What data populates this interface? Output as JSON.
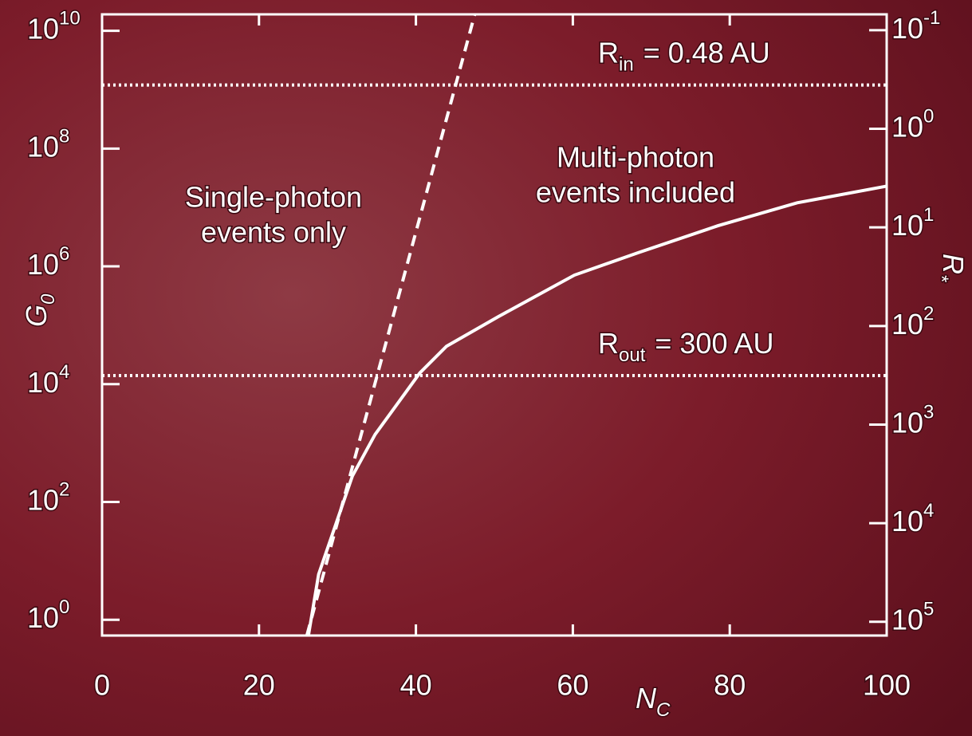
{
  "chart_data": {
    "type": "line",
    "xlabel": "N",
    "xlabel_sub": "C",
    "ylabel": "G",
    "ylabel_sub": "0",
    "y2label": "R",
    "y2label_sub": "*",
    "xlim": [
      0,
      100
    ],
    "xticks": [
      0,
      20,
      40,
      60,
      80,
      100
    ],
    "yscale": "log",
    "ylim": [
      0.54,
      19000000000
    ],
    "yticks": [
      {
        "value": 1,
        "label": "10",
        "exp": "0"
      },
      {
        "value": 100,
        "label": "10",
        "exp": "2"
      },
      {
        "value": 10000,
        "label": "10",
        "exp": "4"
      },
      {
        "value": 1000000,
        "label": "10",
        "exp": "6"
      },
      {
        "value": 100000000,
        "label": "10",
        "exp": "8"
      },
      {
        "value": 10000000000,
        "label": "10",
        "exp": "10"
      }
    ],
    "y2scale": "log",
    "y2lim": [
      138000,
      0.069
    ],
    "y2ticks": [
      {
        "value": 0.1,
        "label": "10",
        "exp": "-1"
      },
      {
        "value": 1,
        "label": "10",
        "exp": "0"
      },
      {
        "value": 10,
        "label": "10",
        "exp": "1"
      },
      {
        "value": 100,
        "label": "10",
        "exp": "2"
      },
      {
        "value": 1000,
        "label": "10",
        "exp": "3"
      },
      {
        "value": 10000,
        "label": "10",
        "exp": "4"
      },
      {
        "value": 100000,
        "label": "10",
        "exp": "5"
      }
    ],
    "series": [
      {
        "color": "#ffffff",
        "dash": "dashed",
        "x": [
          26.1,
          47.5
        ],
        "values": [
          0.54,
          19000000000
        ]
      },
      {
        "color": "#ffffff",
        "dash": "solid",
        "x": [
          26.3,
          27.6,
          31.9,
          34.8,
          40.5,
          43.9,
          50.5,
          60.2,
          68.3,
          78.5,
          88.6,
          100
        ],
        "values": [
          0.54,
          5.9,
          275,
          1400,
          15500,
          44000,
          140000,
          710000,
          1700000,
          4900000,
          12000000,
          23000000
        ]
      }
    ],
    "hlines": [
      {
        "value": 1200000000,
        "label": "R",
        "label_sub": "in",
        "label_rest": "= 0.48 AU"
      },
      {
        "value": 14000,
        "label": "R",
        "label_sub": "out",
        "label_rest": "= 300 AU"
      }
    ],
    "annotations": [
      {
        "lines": [
          "Single-photon",
          "events only"
        ]
      },
      {
        "lines": [
          "Multi-photon",
          "events included"
        ]
      }
    ]
  }
}
